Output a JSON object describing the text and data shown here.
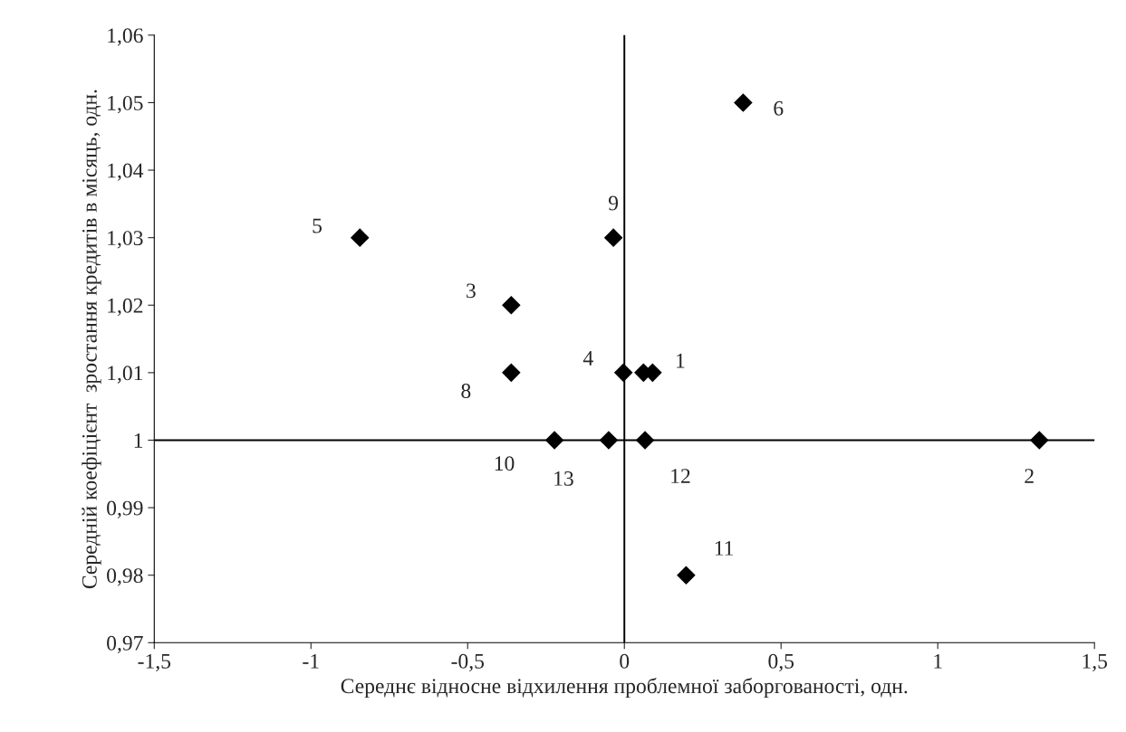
{
  "chart_data": {
    "type": "scatter",
    "xlabel": "Середнє відносне відхилення проблемної заборгованості, одн.",
    "ylabel": "Середній коефіцієнт  зростання кредитів в місяць, одн.",
    "series": [
      {
        "color": "#000000",
        "x": [
          0.09,
          1.324,
          -0.361,
          -0.003,
          -0.844,
          0.379,
          0.061,
          -0.361,
          -0.035,
          -0.223,
          0.197,
          0.066,
          -0.05
        ],
        "values": [
          1.01,
          1.0,
          1.02,
          1.01,
          1.03,
          1.05,
          1.01,
          1.01,
          1.03,
          1.0,
          0.98,
          1.0,
          1.0
        ]
      }
    ],
    "marker": "diamond",
    "annotations": [
      {
        "text": "1",
        "x": 0.09,
        "y": 1.01
      },
      {
        "text": "2",
        "x": 1.324,
        "y": 1.0
      },
      {
        "text": "3",
        "x": -0.361,
        "y": 1.02
      },
      {
        "text": "4",
        "x": -0.003,
        "y": 1.01
      },
      {
        "text": "5",
        "x": -0.844,
        "y": 1.03
      },
      {
        "text": "6",
        "x": 0.379,
        "y": 1.05
      },
      {
        "text": "8",
        "x": -0.361,
        "y": 1.01
      },
      {
        "text": "9",
        "x": -0.035,
        "y": 1.03
      },
      {
        "text": "10",
        "x": -0.223,
        "y": 1.0
      },
      {
        "text": "11",
        "x": 0.197,
        "y": 0.98
      },
      {
        "text": "12",
        "x": 0.066,
        "y": 1.0
      },
      {
        "text": "13",
        "x": -0.05,
        "y": 1.0
      }
    ],
    "ref_lines": [
      {
        "axis": "x",
        "value": 0,
        "color": "#000000"
      },
      {
        "axis": "y",
        "value": 1,
        "color": "#000000"
      }
    ],
    "xlim": [
      -1.5,
      1.5
    ],
    "xticks": [
      {
        "value": -1.5,
        "label": "-1,5"
      },
      {
        "value": -1,
        "label": "-1"
      },
      {
        "value": -0.5,
        "label": "-0,5"
      },
      {
        "value": 0,
        "label": "0"
      },
      {
        "value": 0.5,
        "label": "0,5"
      },
      {
        "value": 1,
        "label": "1"
      },
      {
        "value": 1.5,
        "label": "1,5"
      }
    ],
    "ylim": [
      0.97,
      1.06
    ],
    "yticks": [
      {
        "value": 0.97,
        "label": "0,97"
      },
      {
        "value": 0.98,
        "label": "0,98"
      },
      {
        "value": 0.99,
        "label": "0,99"
      },
      {
        "value": 1,
        "label": "1"
      },
      {
        "value": 1.01,
        "label": "1,01"
      },
      {
        "value": 1.02,
        "label": "1,02"
      },
      {
        "value": 1.03,
        "label": "1,03"
      },
      {
        "value": 1.04,
        "label": "1,04"
      },
      {
        "value": 1.05,
        "label": "1,05"
      },
      {
        "value": 1.06,
        "label": "1,06"
      }
    ],
    "grid": false
  }
}
